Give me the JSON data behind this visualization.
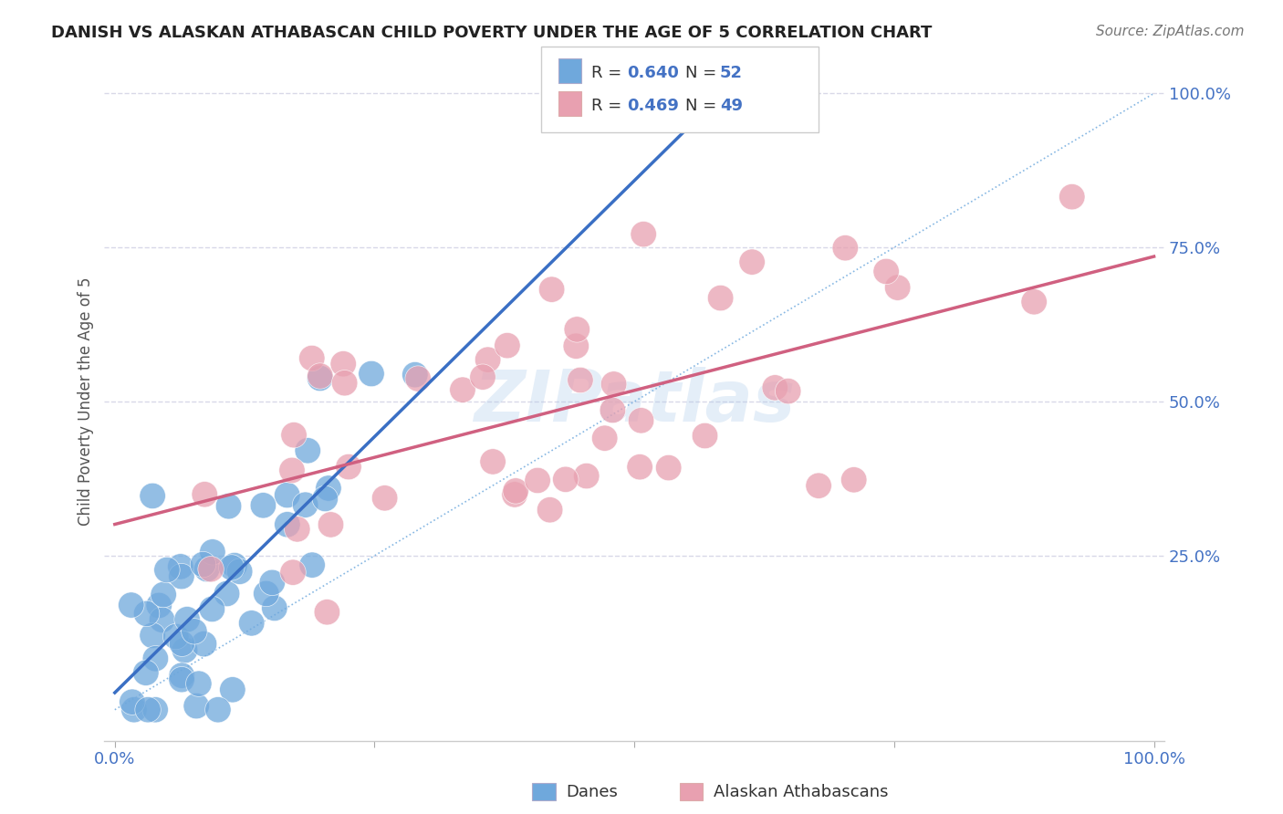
{
  "title": "DANISH VS ALASKAN ATHABASCAN CHILD POVERTY UNDER THE AGE OF 5 CORRELATION CHART",
  "source": "Source: ZipAtlas.com",
  "ylabel": "Child Poverty Under the Age of 5",
  "background_color": "#ffffff",
  "watermark": "ZIPatlas",
  "danish_color": "#6fa8dc",
  "athabascan_color": "#e8a0b0",
  "danish_R": 0.64,
  "danish_N": 52,
  "athabascan_R": 0.469,
  "athabascan_N": 49,
  "grid_color": "#d8d8e8",
  "tick_color": "#4472c4",
  "ref_line_color": "#7ab0e0",
  "danish_line_color": "#3a6fc4",
  "athabascan_line_color": "#d06080"
}
